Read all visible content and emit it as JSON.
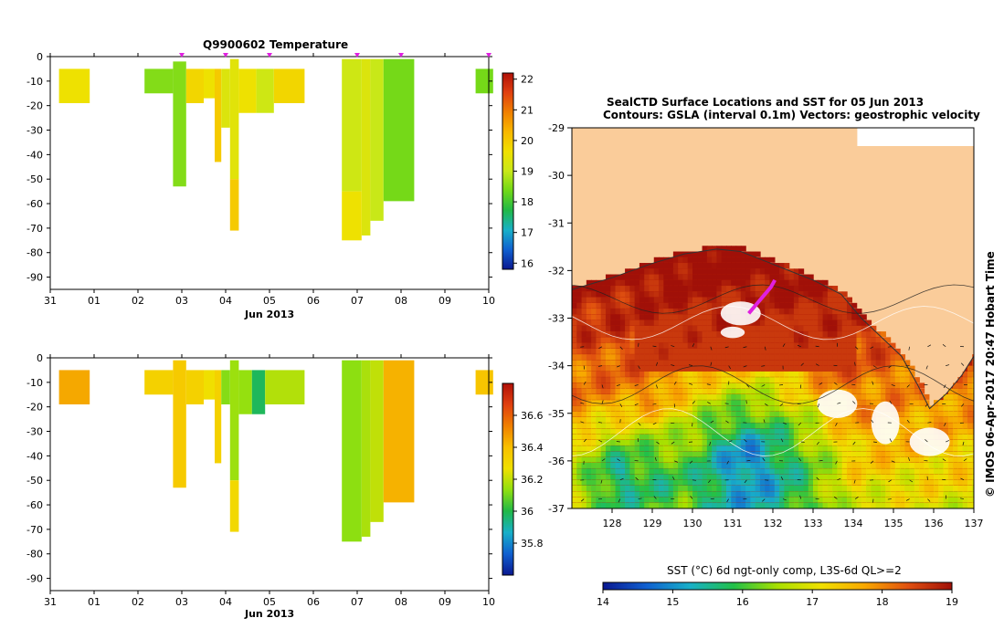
{
  "colors": {
    "land": "#FACC9A",
    "sst_gradient": [
      "#0A1890",
      "#1060D0",
      "#18B0C8",
      "#22C048",
      "#A8E000",
      "#F0E000",
      "#F8A800",
      "#E05010",
      "#A01008"
    ],
    "temp_scale": [
      "#0A1890",
      "#1060D0",
      "#18B0C8",
      "#20B848",
      "#70D818",
      "#C8E818",
      "#F0E000",
      "#F8B800",
      "#F08000",
      "#E04010",
      "#B01008"
    ],
    "sal_scale": [
      "#0A1890",
      "#1060D0",
      "#18B0C8",
      "#20B848",
      "#90E010",
      "#F0E000",
      "#F8C000",
      "#F08000",
      "#E04010",
      "#B01008"
    ],
    "marker": "#E020E0"
  },
  "chart_data": [
    {
      "type": "heatmap",
      "id": "temperature-panel",
      "title": "Q9900602  Temperature",
      "xlabel": "Jun 2013",
      "xticks": [
        "31",
        "01",
        "02",
        "03",
        "04",
        "05",
        "06",
        "07",
        "08",
        "09",
        "10"
      ],
      "xlim": [
        -1,
        9
      ],
      "ylim": [
        0,
        -95
      ],
      "yticks": [
        0,
        -10,
        -20,
        -30,
        -40,
        -50,
        -60,
        -70,
        -80,
        -90
      ],
      "profile_markers": [
        2.0,
        3.0,
        4.0,
        6.0,
        7.0,
        9.0
      ],
      "colorbar": {
        "min": 15.8,
        "max": 22.2,
        "ticks": [
          16,
          17,
          18,
          19,
          20,
          21,
          22
        ]
      },
      "cells": [
        {
          "x0": -0.8,
          "x1": -0.1,
          "d0": -5,
          "d1": -19,
          "v": 19.6
        },
        {
          "x0": 1.15,
          "x1": 1.8,
          "d0": -5,
          "d1": -15,
          "v": 18.5
        },
        {
          "x0": 1.8,
          "x1": 2.1,
          "d0": -2,
          "d1": -53,
          "v": 18.5
        },
        {
          "x0": 2.1,
          "x1": 2.5,
          "d0": -5,
          "d1": -19,
          "v": 19.8
        },
        {
          "x0": 2.5,
          "x1": 2.75,
          "d0": -5,
          "d1": -17,
          "v": 19.6
        },
        {
          "x0": 2.75,
          "x1": 2.9,
          "d0": -5,
          "d1": -43,
          "v": 20.0
        },
        {
          "x0": 2.9,
          "x1": 3.1,
          "d0": -5,
          "d1": -29,
          "v": 19.3
        },
        {
          "x0": 3.1,
          "x1": 3.3,
          "d0": -1,
          "d1": -50,
          "v": 19.4
        },
        {
          "x0": 3.1,
          "x1": 3.3,
          "d0": -50,
          "d1": -71,
          "v": 20.0
        },
        {
          "x0": 3.3,
          "x1": 3.7,
          "d0": -5,
          "d1": -23,
          "v": 19.6
        },
        {
          "x0": 3.7,
          "x1": 4.1,
          "d0": -5,
          "d1": -23,
          "v": 19.1
        },
        {
          "x0": 4.1,
          "x1": 4.8,
          "d0": -5,
          "d1": -19,
          "v": 19.8
        },
        {
          "x0": 5.65,
          "x1": 6.1,
          "d0": -1,
          "d1": -55,
          "v": 19.1
        },
        {
          "x0": 5.65,
          "x1": 6.1,
          "d0": -55,
          "d1": -75,
          "v": 19.6
        },
        {
          "x0": 6.1,
          "x1": 6.3,
          "d0": -1,
          "d1": -73,
          "v": 19.3
        },
        {
          "x0": 6.3,
          "x1": 6.6,
          "d0": -1,
          "d1": -67,
          "v": 19.0
        },
        {
          "x0": 6.6,
          "x1": 7.3,
          "d0": -1,
          "d1": -59,
          "v": 18.4
        },
        {
          "x0": 8.7,
          "x1": 9.1,
          "d0": -5,
          "d1": -15,
          "v": 18.4
        }
      ]
    },
    {
      "type": "heatmap",
      "id": "salinity-panel",
      "title": "",
      "xlabel": "Jun 2013",
      "xticks": [
        "31",
        "01",
        "02",
        "03",
        "04",
        "05",
        "06",
        "07",
        "08",
        "09",
        "10"
      ],
      "xlim": [
        -1,
        9
      ],
      "ylim": [
        0,
        -95
      ],
      "yticks": [
        0,
        -10,
        -20,
        -30,
        -40,
        -50,
        -60,
        -70,
        -80,
        -90
      ],
      "colorbar": {
        "min": 35.6,
        "max": 36.8,
        "ticks": [
          35.8,
          36,
          36.2,
          36.4,
          36.6
        ]
      },
      "cells": [
        {
          "x0": -0.8,
          "x1": -0.1,
          "d0": -5,
          "d1": -19,
          "v": 36.45
        },
        {
          "x0": 1.15,
          "x1": 1.8,
          "d0": -5,
          "d1": -15,
          "v": 36.33
        },
        {
          "x0": 1.8,
          "x1": 2.1,
          "d0": -1,
          "d1": -53,
          "v": 36.36
        },
        {
          "x0": 2.1,
          "x1": 2.5,
          "d0": -5,
          "d1": -19,
          "v": 36.33
        },
        {
          "x0": 2.5,
          "x1": 2.75,
          "d0": -5,
          "d1": -17,
          "v": 36.27
        },
        {
          "x0": 2.75,
          "x1": 2.9,
          "d0": -5,
          "d1": -43,
          "v": 36.33
        },
        {
          "x0": 2.9,
          "x1": 3.1,
          "d0": -5,
          "d1": -19,
          "v": 36.12
        },
        {
          "x0": 3.1,
          "x1": 3.3,
          "d0": -1,
          "d1": -50,
          "v": 36.15
        },
        {
          "x0": 3.1,
          "x1": 3.3,
          "d0": -50,
          "d1": -71,
          "v": 36.3
        },
        {
          "x0": 3.3,
          "x1": 3.6,
          "d0": -5,
          "d1": -23,
          "v": 36.14
        },
        {
          "x0": 3.6,
          "x1": 3.9,
          "d0": -5,
          "d1": -23,
          "v": 35.98
        },
        {
          "x0": 3.9,
          "x1": 4.8,
          "d0": -5,
          "d1": -19,
          "v": 36.18
        },
        {
          "x0": 5.65,
          "x1": 6.1,
          "d0": -1,
          "d1": -75,
          "v": 36.13
        },
        {
          "x0": 6.1,
          "x1": 6.3,
          "d0": -1,
          "d1": -73,
          "v": 36.17
        },
        {
          "x0": 6.3,
          "x1": 6.6,
          "d0": -1,
          "d1": -67,
          "v": 36.2
        },
        {
          "x0": 6.6,
          "x1": 7.3,
          "d0": -1,
          "d1": -59,
          "v": 36.43
        },
        {
          "x0": 8.7,
          "x1": 9.1,
          "d0": -5,
          "d1": -15,
          "v": 36.38
        }
      ]
    },
    {
      "type": "heatmap",
      "id": "sst-map",
      "title_line1": "SealCTD Surface Locations and SST for 05 Jun 2013",
      "title_line2": "Contours: GSLA (interval 0.1m) Vectors: geostrophic velocity",
      "xticks": [
        "128",
        "129",
        "130",
        "131",
        "132",
        "133",
        "134",
        "135",
        "136",
        "137"
      ],
      "yticks": [
        "-29",
        "-30",
        "-31",
        "-32",
        "-33",
        "-34",
        "-35",
        "-36",
        "-37"
      ],
      "xlim": [
        127,
        137
      ],
      "ylim": [
        -37,
        -29
      ],
      "colorbar_label": "SST (°C) 6d ngt-only comp, L3S-6d QL>=2",
      "colorbar_ticks": [
        "14",
        "15",
        "16",
        "17",
        "18",
        "19"
      ],
      "colorbar_range": [
        14,
        19
      ],
      "side_note": "© IMOS 06-Apr-2017 20:47 Hobart Time",
      "track": [
        [
          131.4,
          -32.9
        ],
        [
          131.6,
          -32.7
        ],
        [
          131.8,
          -32.5
        ],
        [
          131.95,
          -32.35
        ],
        [
          132.05,
          -32.2
        ]
      ]
    }
  ]
}
